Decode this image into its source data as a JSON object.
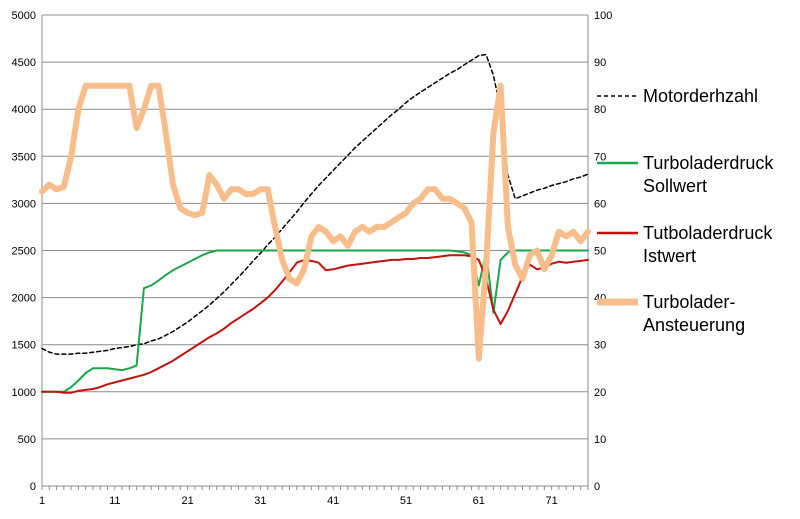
{
  "chart_data": {
    "type": "line",
    "title": "",
    "xlabel": "",
    "ylabel": "",
    "y2label": "",
    "x": [
      1,
      2,
      3,
      4,
      5,
      6,
      7,
      8,
      9,
      10,
      11,
      12,
      13,
      14,
      15,
      16,
      17,
      18,
      19,
      20,
      21,
      22,
      23,
      24,
      25,
      26,
      27,
      28,
      29,
      30,
      31,
      32,
      33,
      34,
      35,
      36,
      37,
      38,
      39,
      40,
      41,
      42,
      43,
      44,
      45,
      46,
      47,
      48,
      49,
      50,
      51,
      52,
      53,
      54,
      55,
      56,
      57,
      58,
      59,
      60,
      61,
      62,
      63,
      64,
      65,
      66,
      67,
      68,
      69,
      70,
      71,
      72,
      73,
      74,
      75,
      76
    ],
    "x_ticks": [
      "1",
      "11",
      "21",
      "31",
      "41",
      "51",
      "61",
      "71"
    ],
    "x_tick_values": [
      1,
      11,
      21,
      31,
      41,
      51,
      61,
      71
    ],
    "xlim": [
      1,
      76
    ],
    "ylim": [
      0,
      5000
    ],
    "y_ticks": [
      "0",
      "500",
      "1000",
      "1500",
      "2000",
      "2500",
      "3000",
      "3500",
      "4000",
      "4500",
      "5000"
    ],
    "y2lim": [
      0,
      100
    ],
    "y2_ticks": [
      "0",
      "10",
      "20",
      "30",
      "40",
      "50",
      "60",
      "70",
      "80",
      "90",
      "100"
    ],
    "grid": "horizontal",
    "legend_position": "right",
    "series": [
      {
        "name": "Motorderhzahl",
        "axis": "left",
        "style": "dashed",
        "color": "#000000",
        "values": [
          1460,
          1420,
          1400,
          1400,
          1400,
          1410,
          1410,
          1420,
          1430,
          1440,
          1460,
          1470,
          1480,
          1500,
          1510,
          1540,
          1560,
          1600,
          1640,
          1690,
          1740,
          1800,
          1860,
          1920,
          1990,
          2060,
          2140,
          2220,
          2300,
          2390,
          2470,
          2560,
          2640,
          2730,
          2820,
          2910,
          3010,
          3100,
          3190,
          3270,
          3350,
          3430,
          3510,
          3590,
          3660,
          3730,
          3800,
          3870,
          3940,
          4000,
          4070,
          4130,
          4180,
          4230,
          4280,
          4330,
          4380,
          4420,
          4470,
          4520,
          4570,
          4580,
          4360,
          4000,
          3300,
          3050,
          3080,
          3110,
          3140,
          3160,
          3190,
          3210,
          3230,
          3260,
          3280,
          3310
        ]
      },
      {
        "name": "Turboladerdruck Sollwert",
        "axis": "left",
        "style": "solid",
        "color": "#1aa64a",
        "values": [
          1000,
          1000,
          1000,
          1000,
          1050,
          1120,
          1200,
          1250,
          1250,
          1250,
          1240,
          1230,
          1250,
          1280,
          2100,
          2130,
          2180,
          2240,
          2290,
          2330,
          2370,
          2410,
          2450,
          2480,
          2500,
          2500,
          2500,
          2500,
          2500,
          2500,
          2500,
          2500,
          2500,
          2500,
          2500,
          2500,
          2500,
          2500,
          2500,
          2500,
          2500,
          2500,
          2500,
          2500,
          2500,
          2500,
          2500,
          2500,
          2500,
          2500,
          2500,
          2500,
          2500,
          2500,
          2500,
          2500,
          2500,
          2490,
          2480,
          2450,
          2130,
          2480,
          1840,
          2400,
          2480,
          2500,
          2500,
          2500,
          2500,
          2500,
          2500,
          2500,
          2500,
          2500,
          2500,
          2500
        ]
      },
      {
        "name": "Tutboladerdruck Istwert",
        "axis": "left",
        "style": "solid",
        "color": "#c0140c",
        "values": [
          1000,
          1000,
          1000,
          990,
          990,
          1010,
          1020,
          1030,
          1050,
          1080,
          1100,
          1120,
          1140,
          1160,
          1180,
          1210,
          1250,
          1290,
          1330,
          1380,
          1430,
          1480,
          1530,
          1580,
          1620,
          1670,
          1730,
          1780,
          1830,
          1880,
          1940,
          2000,
          2080,
          2170,
          2270,
          2370,
          2400,
          2390,
          2370,
          2290,
          2300,
          2320,
          2340,
          2350,
          2360,
          2370,
          2380,
          2390,
          2400,
          2400,
          2410,
          2410,
          2420,
          2420,
          2430,
          2440,
          2450,
          2450,
          2450,
          2440,
          2400,
          2200,
          1870,
          1720,
          1860,
          2040,
          2220,
          2350,
          2300,
          2320,
          2360,
          2380,
          2370,
          2380,
          2390,
          2400
        ]
      },
      {
        "name": "Turbolader-Ansteuerung",
        "axis": "right",
        "style": "solid",
        "color": "#f7be8c",
        "values": [
          62.5,
          64,
          63,
          63.5,
          70,
          80,
          85,
          85,
          85,
          85,
          85,
          85,
          85,
          76,
          80,
          85,
          85,
          75,
          64,
          59,
          58,
          57.5,
          58,
          66,
          64,
          61,
          63,
          63,
          62,
          62,
          63,
          63,
          55,
          48,
          44,
          43,
          46,
          53,
          55,
          54,
          52,
          53,
          51,
          54,
          55,
          54,
          55,
          55,
          56,
          57,
          58,
          60,
          61,
          63,
          63,
          61,
          61,
          60,
          59,
          56,
          27,
          47,
          75,
          85,
          55,
          47,
          44,
          49,
          50,
          46,
          49,
          54,
          53,
          54,
          52,
          54
        ]
      }
    ],
    "legend": [
      {
        "lines": [
          "Motorderhzahl"
        ]
      },
      {
        "lines": [
          "Turboladerdruck",
          "Sollwert"
        ]
      },
      {
        "lines": [
          "Tutboladerdruck",
          "Istwert"
        ]
      },
      {
        "lines": [
          "Turbolader-",
          "Ansteuerung"
        ]
      }
    ]
  }
}
